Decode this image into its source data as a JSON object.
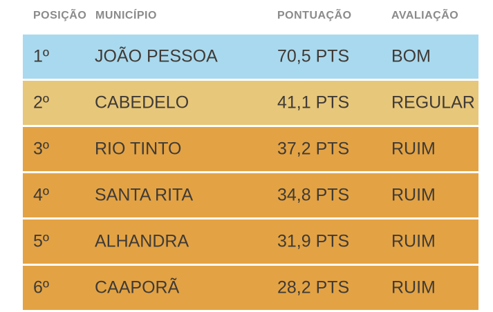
{
  "table": {
    "headers": {
      "position": "POSIÇÃO",
      "municipality": "MUNICÍPIO",
      "score": "PONTUAÇÃO",
      "rating": "AVALIAÇÃO"
    },
    "rows": [
      {
        "position": "1º",
        "municipality": "JOÃO PESSOA",
        "score": "70,5 PTS",
        "rating": "BOM",
        "color": "#a9d9ee"
      },
      {
        "position": "2º",
        "municipality": "CABEDELO",
        "score": "41,1 PTS",
        "rating": "REGULAR",
        "color": "#e7c77a"
      },
      {
        "position": "3º",
        "municipality": "RIO TINTO",
        "score": "37,2 PTS",
        "rating": "RUIM",
        "color": "#e3a344"
      },
      {
        "position": "4º",
        "municipality": "SANTA RITA",
        "score": "34,8 PTS",
        "rating": "RUIM",
        "color": "#e3a344"
      },
      {
        "position": "5º",
        "municipality": "ALHANDRA",
        "score": "31,9 PTS",
        "rating": "RUIM",
        "color": "#e3a344"
      },
      {
        "position": "6º",
        "municipality": "CAAPORÃ",
        "score": "28,2 PTS",
        "rating": "RUIM",
        "color": "#e3a344"
      }
    ]
  }
}
